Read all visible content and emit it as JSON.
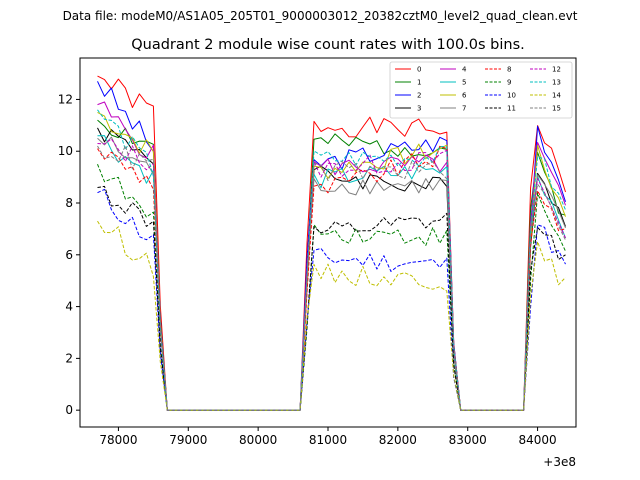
{
  "chart_data": {
    "type": "line",
    "suptitle": "Data file: modeM0/AS1A05_205T01_9000003012_20382cztM0_level2_quad_clean.evt",
    "title": "Quadrant 2 module wise count rates with 100.0s bins.",
    "xlabel": "",
    "ylabel": "",
    "x_offset_label": "+3e8",
    "xlim": [
      77450,
      84550
    ],
    "ylim": [
      -0.65,
      13.6
    ],
    "xticks": [
      78000,
      79000,
      80000,
      81000,
      82000,
      83000,
      84000
    ],
    "xtick_labels": [
      "78000",
      "79000",
      "80000",
      "81000",
      "82000",
      "83000",
      "84000"
    ],
    "yticks": [
      0,
      2,
      4,
      6,
      8,
      10,
      12
    ],
    "ytick_labels": [
      "0",
      "2",
      "4",
      "6",
      "8",
      "10",
      "12"
    ],
    "legend_position": "top-right",
    "segments": [
      {
        "x_start": 77700,
        "x_end": 78500,
        "gap_after": [
          78600,
          78700,
          80600
        ]
      },
      {
        "x_start": 80700,
        "x_end": 82700,
        "gap_after": [
          82800,
          82900,
          83800
        ]
      },
      {
        "x_start": 83900,
        "x_end": 84400
      }
    ],
    "series": [
      {
        "name": "0",
        "color": "#ff0000",
        "dash": "solid",
        "levels": [
          12.9,
          11.5,
          11.0,
          10.8
        ],
        "seed": 1
      },
      {
        "name": "1",
        "color": "#008000",
        "dash": "solid",
        "levels": [
          11.2,
          10.2,
          10.3,
          10.1
        ],
        "seed": 2
      },
      {
        "name": "2",
        "color": "#0000ff",
        "dash": "solid",
        "levels": [
          12.7,
          10.1,
          9.5,
          10.4
        ],
        "seed": 3
      },
      {
        "name": "3",
        "color": "#000000",
        "dash": "solid",
        "levels": [
          10.9,
          9.8,
          9.1,
          8.6
        ],
        "seed": 4
      },
      {
        "name": "4",
        "color": "#bf00bf",
        "dash": "solid",
        "levels": [
          11.8,
          9.8,
          9.4,
          9.5
        ],
        "seed": 5
      },
      {
        "name": "5",
        "color": "#00bfbf",
        "dash": "solid",
        "levels": [
          10.6,
          9.0,
          8.9,
          9.3
        ],
        "seed": 6
      },
      {
        "name": "6",
        "color": "#bfbf00",
        "dash": "solid",
        "levels": [
          11.5,
          9.9,
          9.2,
          10.1
        ],
        "seed": 7
      },
      {
        "name": "7",
        "color": "#808080",
        "dash": "solid",
        "levels": [
          10.5,
          9.2,
          8.7,
          8.7
        ],
        "seed": 8
      },
      {
        "name": "8",
        "color": "#ff0000",
        "dash": "dashed",
        "levels": [
          10.1,
          8.8,
          8.4,
          9.9
        ],
        "seed": 9
      },
      {
        "name": "9",
        "color": "#008000",
        "dash": "dashed",
        "levels": [
          9.5,
          7.2,
          6.9,
          6.7
        ],
        "seed": 10
      },
      {
        "name": "10",
        "color": "#0000ff",
        "dash": "dashed",
        "levels": [
          8.4,
          6.5,
          5.9,
          5.6
        ],
        "seed": 11
      },
      {
        "name": "11",
        "color": "#000000",
        "dash": "dashed",
        "levels": [
          8.6,
          7.2,
          6.8,
          7.3
        ],
        "seed": 12
      },
      {
        "name": "12",
        "color": "#bf00bf",
        "dash": "dashed",
        "levels": [
          10.3,
          9.6,
          9.3,
          9.7
        ],
        "seed": 13
      },
      {
        "name": "13",
        "color": "#00bfbf",
        "dash": "dashed",
        "levels": [
          11.6,
          9.3,
          9.7,
          9.8
        ],
        "seed": 14
      },
      {
        "name": "14",
        "color": "#bfbf00",
        "dash": "dashed",
        "levels": [
          7.3,
          5.6,
          5.3,
          5.0
        ],
        "seed": 15
      },
      {
        "name": "15",
        "color": "#808080",
        "dash": "dashed",
        "levels": [
          10.2,
          9.4,
          9.2,
          9.3
        ],
        "seed": 16
      }
    ]
  }
}
